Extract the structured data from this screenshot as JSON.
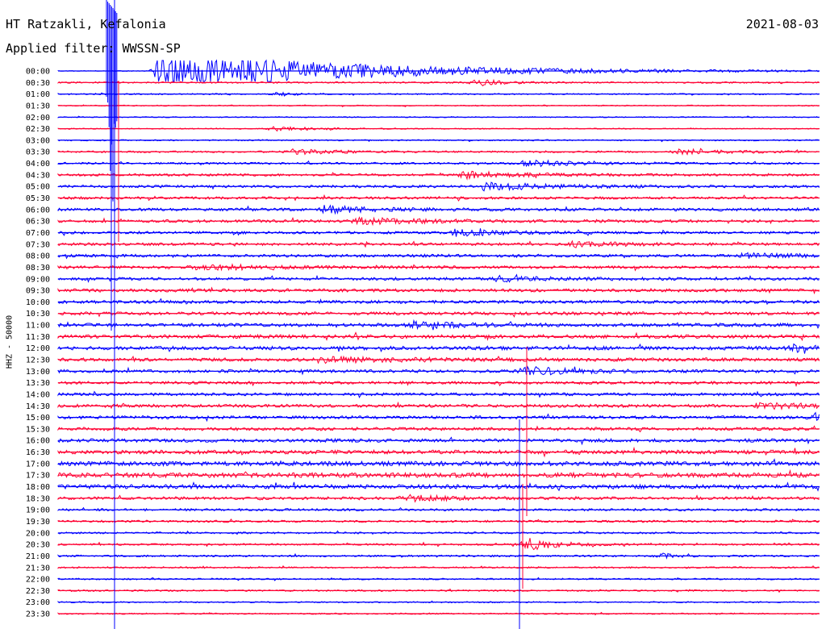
{
  "header": {
    "station": "HT Ratzakli, Kefalonia",
    "filter": "Applied filter: WWSSN-SP",
    "date": "2021-08-03"
  },
  "chart_data": {
    "type": "line",
    "title": "HT Ratzakli, Kefalonia",
    "subtitle": "Applied filter: WWSSN-SP",
    "date": "2021-08-03",
    "ylabel": "HHZ - 50000",
    "xlabel": "",
    "row_labels": [
      "00:00",
      "00:30",
      "01:00",
      "01:30",
      "02:00",
      "02:30",
      "03:00",
      "03:30",
      "04:00",
      "04:30",
      "05:00",
      "05:30",
      "06:00",
      "06:30",
      "07:00",
      "07:30",
      "08:00",
      "08:30",
      "09:00",
      "09:30",
      "10:00",
      "10:30",
      "11:00",
      "11:30",
      "12:00",
      "12:30",
      "13:00",
      "13:30",
      "14:00",
      "14:30",
      "15:00",
      "15:30",
      "16:00",
      "16:30",
      "17:00",
      "17:30",
      "18:00",
      "18:30",
      "19:00",
      "19:30",
      "20:00",
      "20:30",
      "21:00",
      "21:30",
      "22:00",
      "22:30",
      "23:00",
      "23:30"
    ],
    "rows_per_hour": 2,
    "minutes_per_row": 30,
    "trace_colors": [
      "#0000ff",
      "#ff0033"
    ],
    "noise_level": [
      0.15,
      0.3,
      0.25,
      0.2,
      0.2,
      0.2,
      0.25,
      0.35,
      0.4,
      0.45,
      0.5,
      0.5,
      0.55,
      0.55,
      0.5,
      0.5,
      0.55,
      0.55,
      0.55,
      0.6,
      0.6,
      0.6,
      0.65,
      0.7,
      0.7,
      0.65,
      0.6,
      0.55,
      0.55,
      0.6,
      0.6,
      0.6,
      0.65,
      0.75,
      0.85,
      0.9,
      0.8,
      0.55,
      0.45,
      0.4,
      0.35,
      0.35,
      0.35,
      0.3,
      0.3,
      0.3,
      0.25,
      0.25
    ],
    "events": [
      {
        "row": 0,
        "minute": 4.0,
        "amplitude": 8.0,
        "duration_min": 12
      },
      {
        "row": 1,
        "minute": 16.5,
        "amplitude": 1.6,
        "duration_min": 1.5
      },
      {
        "row": 2,
        "minute": 8.7,
        "amplitude": 0.9,
        "duration_min": 1
      },
      {
        "row": 5,
        "minute": 8.5,
        "amplitude": 1.2,
        "duration_min": 2
      },
      {
        "row": 7,
        "minute": 9.2,
        "amplitude": 0.9,
        "duration_min": 3
      },
      {
        "row": 7,
        "minute": 24.5,
        "amplitude": 1.0,
        "duration_min": 3
      },
      {
        "row": 8,
        "minute": 18.3,
        "amplitude": 1.3,
        "duration_min": 3
      },
      {
        "row": 9,
        "minute": 16.0,
        "amplitude": 1.2,
        "duration_min": 4
      },
      {
        "row": 10,
        "minute": 16.8,
        "amplitude": 1.4,
        "duration_min": 4
      },
      {
        "row": 12,
        "minute": 10.5,
        "amplitude": 1.3,
        "duration_min": 3
      },
      {
        "row": 13,
        "minute": 11.8,
        "amplitude": 1.1,
        "duration_min": 4
      },
      {
        "row": 14,
        "minute": 15.6,
        "amplitude": 1.3,
        "duration_min": 3
      },
      {
        "row": 15,
        "minute": 20.3,
        "amplitude": 1.0,
        "duration_min": 3
      },
      {
        "row": 16,
        "minute": 27.0,
        "amplitude": 1.0,
        "duration_min": 3
      },
      {
        "row": 17,
        "minute": 5.5,
        "amplitude": 1.0,
        "duration_min": 4
      },
      {
        "row": 18,
        "minute": 17.3,
        "amplitude": 0.9,
        "duration_min": 3
      },
      {
        "row": 22,
        "minute": 14.0,
        "amplitude": 1.2,
        "duration_min": 3
      },
      {
        "row": 24,
        "minute": 29.0,
        "amplitude": 1.3,
        "duration_min": 3
      },
      {
        "row": 25,
        "minute": 10.5,
        "amplitude": 0.8,
        "duration_min": 6
      },
      {
        "row": 26,
        "minute": 18.4,
        "amplitude": 1.5,
        "duration_min": 3
      },
      {
        "row": 29,
        "minute": 27.6,
        "amplitude": 1.0,
        "duration_min": 4
      },
      {
        "row": 30,
        "minute": 29.8,
        "amplitude": 1.5,
        "duration_min": 3
      },
      {
        "row": 37,
        "minute": 13.8,
        "amplitude": 1.0,
        "duration_min": 3
      },
      {
        "row": 41,
        "minute": 18.4,
        "amplitude": 2.5,
        "duration_min": 2
      },
      {
        "row": 42,
        "minute": 23.8,
        "amplitude": 1.0,
        "duration_min": 1
      }
    ],
    "grid": false,
    "legend": "none"
  }
}
